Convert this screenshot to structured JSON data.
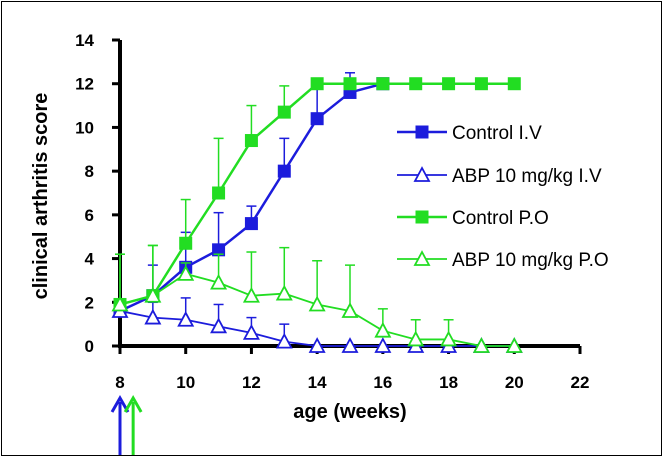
{
  "chart_data": {
    "type": "line",
    "xlabel": "age (weeks)",
    "ylabel": "clinical arthritis score",
    "xlim": [
      8,
      22
    ],
    "ylim": [
      0,
      14
    ],
    "xticks": [
      "8",
      "10",
      "12",
      "14",
      "16",
      "18",
      "20",
      "22"
    ],
    "yticks": [
      "0",
      "2",
      "4",
      "6",
      "8",
      "10",
      "12",
      "14"
    ],
    "legend_position": "right",
    "series": [
      {
        "name": "Control I.V",
        "color": "#1c1cdc",
        "marker": "square-filled",
        "x": [
          8,
          9,
          10,
          11,
          12,
          13,
          14,
          15,
          16
        ],
        "y": [
          1.6,
          2.3,
          3.6,
          4.4,
          5.6,
          8.0,
          10.4,
          11.6,
          12.0
        ],
        "err": [
          0.5,
          1.4,
          1.6,
          1.7,
          0.8,
          1.5,
          1.8,
          0.9,
          0.0
        ]
      },
      {
        "name": "ABP 10 mg/kg I.V",
        "color": "#1c1cdc",
        "marker": "triangle-open",
        "x": [
          8,
          9,
          10,
          11,
          12,
          13,
          14,
          15,
          16,
          17,
          18,
          19,
          20
        ],
        "y": [
          1.6,
          1.3,
          1.2,
          0.9,
          0.6,
          0.2,
          0.0,
          0.0,
          0.0,
          0.0,
          0.0,
          0.0,
          0.0
        ],
        "err": [
          0.0,
          0.7,
          1.0,
          1.0,
          0.7,
          0.8,
          0.0,
          0.0,
          0.0,
          0.0,
          0.0,
          0.0,
          0.0
        ]
      },
      {
        "name": "Control P.O",
        "color": "#22dd22",
        "marker": "square-filled",
        "x": [
          8,
          9,
          10,
          11,
          12,
          13,
          14,
          15,
          16,
          17,
          18,
          19,
          20
        ],
        "y": [
          1.9,
          2.3,
          4.7,
          7.0,
          9.4,
          10.7,
          12.0,
          12.0,
          12.0,
          12.0,
          12.0,
          12.0,
          12.0
        ],
        "err": [
          2.3,
          2.3,
          2.0,
          2.5,
          1.6,
          1.2,
          0.0,
          0.0,
          0.0,
          0.0,
          0.0,
          0.0,
          0.0
        ]
      },
      {
        "name": "ABP 10 mg/kg P.O",
        "color": "#22dd22",
        "marker": "triangle-open",
        "x": [
          8,
          9,
          10,
          11,
          12,
          13,
          14,
          15,
          16,
          17,
          18,
          19,
          20
        ],
        "y": [
          1.9,
          2.3,
          3.3,
          2.9,
          2.3,
          2.4,
          1.9,
          1.6,
          0.7,
          0.3,
          0.3,
          0.0,
          0.0
        ],
        "err": [
          2.3,
          2.3,
          0.5,
          1.3,
          2.0,
          2.1,
          2.0,
          2.1,
          1.0,
          0.9,
          0.9,
          0.0,
          0.0
        ]
      }
    ],
    "arrows": [
      {
        "x": 8,
        "color": "#1c1cdc"
      },
      {
        "x": 8.4,
        "color": "#22dd22"
      }
    ]
  }
}
